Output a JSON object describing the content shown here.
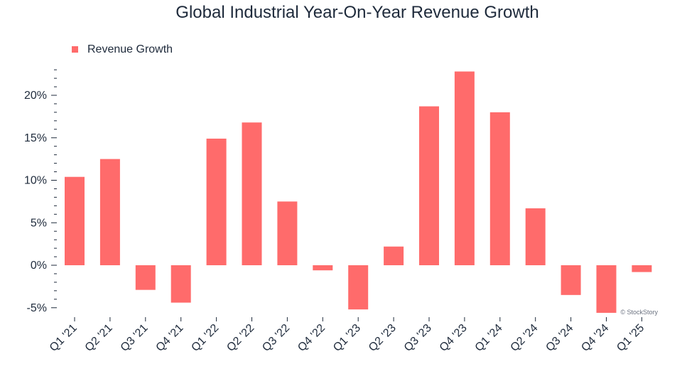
{
  "chart_data": {
    "type": "bar",
    "title": "Global Industrial Year-On-Year Revenue Growth",
    "xlabel": "",
    "ylabel": "",
    "categories": [
      "Q1 '21",
      "Q2 '21",
      "Q3 '21",
      "Q4 '21",
      "Q1 '22",
      "Q2 '22",
      "Q3 '22",
      "Q4 '22",
      "Q1 '23",
      "Q2 '23",
      "Q3 '23",
      "Q4 '23",
      "Q1 '24",
      "Q2 '24",
      "Q3 '24",
      "Q4 '24",
      "Q1 '25"
    ],
    "series": [
      {
        "name": "Revenue Growth",
        "color": "#ff6b6b",
        "values": [
          10.4,
          12.5,
          -2.9,
          -4.4,
          14.9,
          16.8,
          7.5,
          -0.6,
          -5.2,
          2.2,
          18.7,
          22.8,
          18.0,
          6.7,
          -3.5,
          -5.6,
          -0.8
        ]
      }
    ],
    "yticks": [
      -5,
      0,
      5,
      10,
      15,
      20
    ],
    "ytick_labels": [
      "-5%",
      "0%",
      "5%",
      "10%",
      "15%",
      "20%"
    ],
    "ylim": [
      -5.6,
      23
    ],
    "legend_position": "top-left",
    "grid": false
  },
  "watermark": "© StockStory"
}
